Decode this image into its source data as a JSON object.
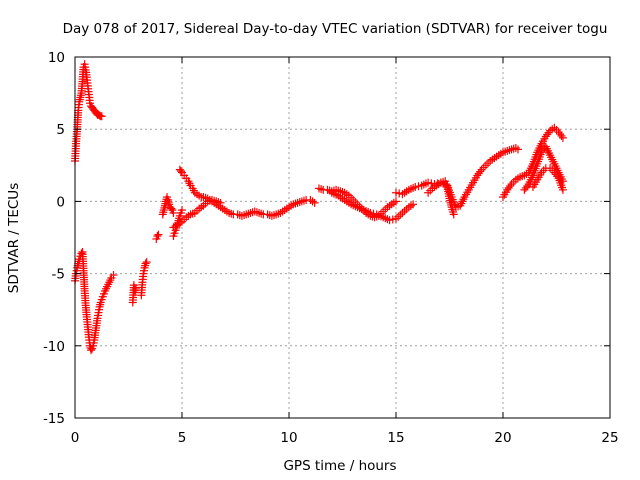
{
  "chart_data": {
    "type": "scatter",
    "title": "Day 078 of 2017, Sidereal Day-to-day VTEC variation (SDTVAR) for receiver togu",
    "xlabel": "GPS time / hours",
    "ylabel": "SDTVAR / TECUs",
    "xlim": [
      0,
      25
    ],
    "ylim": [
      -15,
      10
    ],
    "xticks": [
      0,
      5,
      10,
      15,
      20,
      25
    ],
    "yticks": [
      -15,
      -10,
      -5,
      0,
      5,
      10
    ],
    "xtick_labels": [
      "0",
      "5",
      "10",
      "15",
      "20",
      "25"
    ],
    "ytick_labels": [
      "-15",
      "-10",
      "-5",
      "0",
      "5",
      "10"
    ],
    "grid": true,
    "marker": "plus",
    "color": "#ff0000",
    "segments": [
      {
        "x": [
          0.0,
          0.05,
          0.1,
          0.15,
          0.2,
          0.25,
          0.3,
          0.35,
          0.4,
          0.45,
          0.5,
          0.55,
          0.6,
          0.65,
          0.7,
          0.75,
          0.8,
          0.85,
          0.9,
          0.95,
          1.0,
          1.05,
          1.1,
          1.15,
          1.2,
          1.25
        ],
        "y": [
          2.8,
          4.0,
          5.0,
          6.3,
          6.9,
          7.2,
          7.5,
          8.3,
          9.3,
          9.5,
          9.1,
          8.6,
          8.0,
          7.4,
          6.8,
          6.6,
          6.5,
          6.4,
          6.3,
          6.2,
          6.1,
          6.0,
          6.0,
          5.95,
          5.9,
          5.9
        ]
      },
      {
        "x": [
          0.0,
          0.05,
          0.1,
          0.15,
          0.2,
          0.25,
          0.3,
          0.35,
          0.4,
          0.45,
          0.5,
          0.55,
          0.6,
          0.65,
          0.7,
          0.75,
          0.8,
          0.85,
          0.9,
          0.95,
          1.0,
          1.05,
          1.1,
          1.15,
          1.2,
          1.3,
          1.4,
          1.5,
          1.6,
          1.7,
          1.8
        ],
        "y": [
          -5.5,
          -5.0,
          -4.6,
          -4.3,
          -4.0,
          -3.8,
          -3.6,
          -3.5,
          -4.8,
          -6.2,
          -7.2,
          -8.0,
          -8.7,
          -9.4,
          -10.0,
          -10.3,
          -10.2,
          -10.0,
          -9.6,
          -9.1,
          -8.6,
          -8.1,
          -7.7,
          -7.3,
          -7.0,
          -6.6,
          -6.2,
          -5.9,
          -5.6,
          -5.3,
          -5.1
        ]
      },
      {
        "x": [
          2.7,
          2.75,
          2.8,
          2.85
        ],
        "y": [
          -7.0,
          -5.8,
          -6.3,
          -6.0
        ]
      },
      {
        "x": [
          3.1,
          3.15,
          3.2,
          3.25,
          3.3,
          3.35
        ],
        "y": [
          -6.5,
          -5.6,
          -5.0,
          -4.6,
          -4.3,
          -4.2
        ]
      },
      {
        "x": [
          3.8,
          3.85,
          3.9
        ],
        "y": [
          -2.6,
          -2.4,
          -2.3
        ]
      },
      {
        "x": [
          4.1,
          4.15,
          4.2,
          4.25,
          4.3,
          4.35,
          4.4,
          4.45,
          4.5,
          4.55,
          4.6
        ],
        "y": [
          -0.9,
          -0.6,
          -0.3,
          0.0,
          0.3,
          0.1,
          -0.2,
          -0.4,
          -0.5,
          -0.6,
          -0.8
        ]
      },
      {
        "x": [
          4.6,
          4.7,
          4.8,
          4.9,
          5.0
        ],
        "y": [
          -2.4,
          -2.0,
          -1.5,
          -1.0,
          -0.6
        ]
      },
      {
        "x": [
          4.9,
          4.95,
          5.0,
          5.1,
          5.2,
          5.3,
          5.4,
          5.5,
          5.6,
          5.7,
          5.8,
          5.9,
          6.0,
          6.2,
          6.4,
          6.6,
          6.8,
          7.0,
          7.2,
          7.4,
          7.6,
          7.8,
          8.0,
          8.2,
          8.4,
          8.6,
          8.8,
          9.0,
          9.2,
          9.4,
          9.6,
          9.8,
          10.0,
          10.2,
          10.4,
          10.6,
          10.8,
          11.0,
          11.2
        ],
        "y": [
          2.2,
          2.1,
          2.0,
          1.8,
          1.6,
          1.4,
          1.1,
          0.9,
          0.6,
          0.5,
          0.4,
          0.3,
          0.3,
          0.2,
          0.0,
          -0.2,
          -0.4,
          -0.6,
          -0.8,
          -0.9,
          -0.9,
          -1.0,
          -0.9,
          -0.8,
          -0.7,
          -0.8,
          -0.9,
          -0.9,
          -1.0,
          -0.9,
          -0.8,
          -0.6,
          -0.4,
          -0.2,
          -0.1,
          0.0,
          0.1,
          0.1,
          -0.1
        ]
      },
      {
        "x": [
          4.6,
          4.8,
          5.0,
          5.2,
          5.4,
          5.6,
          5.8,
          6.0,
          6.2,
          6.4,
          6.6,
          6.8
        ],
        "y": [
          -1.8,
          -1.6,
          -1.4,
          -1.1,
          -0.9,
          -0.8,
          -0.5,
          -0.3,
          0.0,
          0.1,
          0.0,
          -0.1
        ]
      },
      {
        "x": [
          11.4,
          11.6,
          11.8,
          12.0,
          12.2,
          12.4,
          12.6,
          12.8,
          13.0,
          13.2,
          13.4,
          13.6,
          13.8,
          14.0,
          14.2,
          14.4,
          14.6,
          14.8,
          15.0
        ],
        "y": [
          0.9,
          0.8,
          0.8,
          0.7,
          0.8,
          0.7,
          0.6,
          0.4,
          0.1,
          -0.2,
          -0.5,
          -0.8,
          -1.0,
          -1.1,
          -1.0,
          -0.7,
          -0.4,
          -0.2,
          0.0
        ]
      },
      {
        "x": [
          12.0,
          12.3,
          12.6,
          12.9,
          13.2,
          13.5,
          13.8,
          14.1,
          14.4,
          14.7,
          15.0,
          15.3,
          15.6,
          15.8
        ],
        "y": [
          0.6,
          0.4,
          0.1,
          -0.2,
          -0.4,
          -0.6,
          -0.8,
          -0.9,
          -1.1,
          -1.3,
          -1.2,
          -0.8,
          -0.4,
          -0.2
        ]
      },
      {
        "x": [
          15.0,
          15.3,
          15.6,
          15.9,
          16.2,
          16.5,
          16.8,
          17.1,
          17.4,
          17.6,
          17.8,
          18.0,
          18.2,
          18.4,
          18.6,
          18.8,
          19.0,
          19.2,
          19.4,
          19.6,
          19.8,
          20.0,
          20.2,
          20.4,
          20.6,
          20.7
        ],
        "y": [
          0.6,
          0.5,
          0.8,
          1.0,
          1.1,
          1.3,
          1.2,
          1.3,
          1.1,
          0.3,
          -0.4,
          -0.3,
          0.3,
          0.8,
          1.3,
          1.8,
          2.2,
          2.5,
          2.8,
          3.0,
          3.2,
          3.4,
          3.5,
          3.6,
          3.7,
          3.6
        ]
      },
      {
        "x": [
          16.5,
          16.7,
          16.9,
          17.1,
          17.3,
          17.4,
          17.5,
          17.6,
          17.7
        ],
        "y": [
          0.6,
          0.9,
          1.1,
          1.3,
          1.4,
          1.0,
          0.2,
          -0.4,
          -0.9
        ]
      },
      {
        "x": [
          20.0,
          20.2,
          20.4,
          20.6,
          20.8,
          21.0,
          21.2,
          21.4,
          21.6,
          21.8,
          22.0,
          22.2,
          22.4,
          22.6,
          22.8
        ],
        "y": [
          0.3,
          0.8,
          1.2,
          1.5,
          1.7,
          1.8,
          2.0,
          2.6,
          3.4,
          4.0,
          4.5,
          4.9,
          5.1,
          4.8,
          4.4
        ]
      },
      {
        "x": [
          21.0,
          21.2,
          21.4,
          21.6,
          21.8,
          22.0,
          22.2,
          22.4,
          22.6,
          22.8
        ],
        "y": [
          0.8,
          1.2,
          1.8,
          2.6,
          3.4,
          3.8,
          3.2,
          2.6,
          2.0,
          1.4
        ]
      },
      {
        "x": [
          21.4,
          21.6,
          21.8,
          22.0,
          22.2,
          22.4,
          22.6,
          22.8
        ],
        "y": [
          1.0,
          1.5,
          2.0,
          2.3,
          2.3,
          2.0,
          1.6,
          0.8
        ]
      }
    ]
  }
}
